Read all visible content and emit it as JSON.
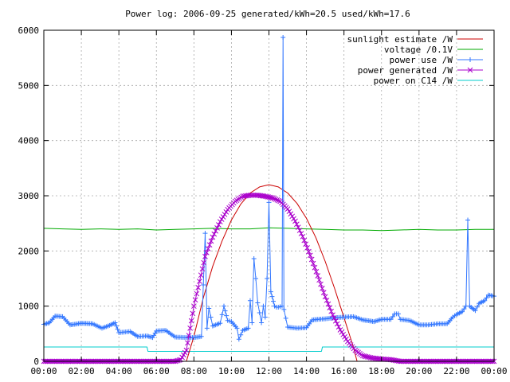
{
  "chart_data": {
    "type": "line",
    "title": "Power log: 2006-09-25 generated/kWh=20.5 used/kWh=17.6",
    "xlabel": "",
    "ylabel": "",
    "xlim": [
      0,
      24
    ],
    "ylim": [
      0,
      6000
    ],
    "x_ticks": [
      "00:00",
      "02:00",
      "04:00",
      "06:00",
      "08:00",
      "10:00",
      "12:00",
      "14:00",
      "16:00",
      "18:00",
      "20:00",
      "22:00",
      "00:00"
    ],
    "y_ticks": [
      0,
      1000,
      2000,
      3000,
      4000,
      5000,
      6000
    ],
    "grid": true,
    "legend_position": "top-right",
    "series": [
      {
        "name": "sunlight estimate /W",
        "style": "line",
        "color": "#cc0000",
        "points": [
          [
            0,
            0
          ],
          [
            7.3,
            0
          ],
          [
            7.6,
            0
          ],
          [
            8,
            450
          ],
          [
            8.5,
            1150
          ],
          [
            9,
            1720
          ],
          [
            9.5,
            2180
          ],
          [
            10,
            2560
          ],
          [
            10.5,
            2850
          ],
          [
            11,
            3050
          ],
          [
            11.5,
            3160
          ],
          [
            12,
            3200
          ],
          [
            12.5,
            3160
          ],
          [
            13,
            3050
          ],
          [
            13.5,
            2860
          ],
          [
            14,
            2590
          ],
          [
            14.5,
            2240
          ],
          [
            15,
            1810
          ],
          [
            15.5,
            1320
          ],
          [
            16,
            790
          ],
          [
            16.5,
            260
          ],
          [
            16.7,
            0
          ],
          [
            24,
            0
          ]
        ]
      },
      {
        "name": "voltage /0.1V",
        "style": "line",
        "color": "#00aa00",
        "points": [
          [
            0,
            2410
          ],
          [
            1,
            2400
          ],
          [
            2,
            2390
          ],
          [
            3,
            2400
          ],
          [
            4,
            2390
          ],
          [
            5,
            2400
          ],
          [
            6,
            2380
          ],
          [
            7,
            2390
          ],
          [
            8,
            2400
          ],
          [
            9,
            2410
          ],
          [
            10,
            2400
          ],
          [
            11,
            2400
          ],
          [
            12,
            2420
          ],
          [
            13,
            2410
          ],
          [
            14,
            2400
          ],
          [
            15,
            2390
          ],
          [
            16,
            2380
          ],
          [
            17,
            2380
          ],
          [
            18,
            2370
          ],
          [
            19,
            2380
          ],
          [
            20,
            2390
          ],
          [
            21,
            2380
          ],
          [
            22,
            2380
          ],
          [
            23,
            2390
          ],
          [
            24,
            2390
          ]
        ]
      },
      {
        "name": "power use /W",
        "style": "linespoints-plus",
        "color": "#3377ff",
        "points": [
          [
            0,
            670
          ],
          [
            0.3,
            700
          ],
          [
            0.6,
            820
          ],
          [
            1,
            810
          ],
          [
            1.4,
            660
          ],
          [
            2,
            690
          ],
          [
            2.6,
            680
          ],
          [
            3.1,
            600
          ],
          [
            3.5,
            650
          ],
          [
            3.8,
            700
          ],
          [
            4,
            520
          ],
          [
            4.6,
            540
          ],
          [
            5,
            450
          ],
          [
            5.5,
            460
          ],
          [
            5.8,
            430
          ],
          [
            6,
            550
          ],
          [
            6.5,
            560
          ],
          [
            7,
            440
          ],
          [
            7.6,
            430
          ],
          [
            8,
            430
          ],
          [
            8.4,
            450
          ],
          [
            8.6,
            2320
          ],
          [
            8.7,
            600
          ],
          [
            8.8,
            960
          ],
          [
            9,
            640
          ],
          [
            9.4,
            690
          ],
          [
            9.6,
            1000
          ],
          [
            9.8,
            740
          ],
          [
            10,
            720
          ],
          [
            10.3,
            600
          ],
          [
            10.4,
            400
          ],
          [
            10.6,
            560
          ],
          [
            10.9,
            600
          ],
          [
            11,
            1100
          ],
          [
            11.1,
            700
          ],
          [
            11.2,
            1860
          ],
          [
            11.3,
            1500
          ],
          [
            11.4,
            1060
          ],
          [
            11.6,
            700
          ],
          [
            11.7,
            1000
          ],
          [
            11.8,
            800
          ],
          [
            11.9,
            1500
          ],
          [
            12,
            2880
          ],
          [
            12.1,
            1260
          ],
          [
            12.3,
            1000
          ],
          [
            12.4,
            980
          ],
          [
            12.5,
            980
          ],
          [
            12.7,
            1000
          ],
          [
            12.75,
            5870
          ],
          [
            12.8,
            940
          ],
          [
            13,
            620
          ],
          [
            13.5,
            600
          ],
          [
            14,
            610
          ],
          [
            14.3,
            750
          ],
          [
            14.6,
            760
          ],
          [
            15,
            770
          ],
          [
            15.5,
            790
          ],
          [
            16,
            800
          ],
          [
            16.5,
            810
          ],
          [
            17,
            750
          ],
          [
            17.6,
            720
          ],
          [
            18,
            760
          ],
          [
            18.5,
            760
          ],
          [
            18.7,
            860
          ],
          [
            18.9,
            860
          ],
          [
            19,
            760
          ],
          [
            19.5,
            740
          ],
          [
            20,
            660
          ],
          [
            20.5,
            660
          ],
          [
            21,
            680
          ],
          [
            21.5,
            680
          ],
          [
            21.8,
            800
          ],
          [
            22,
            850
          ],
          [
            22.3,
            900
          ],
          [
            22.5,
            1000
          ],
          [
            22.6,
            2560
          ],
          [
            22.7,
            1000
          ],
          [
            23,
            920
          ],
          [
            23.2,
            1050
          ],
          [
            23.5,
            1100
          ],
          [
            23.7,
            1200
          ],
          [
            24,
            1180
          ]
        ]
      },
      {
        "name": "power generated /W",
        "style": "linespoints-x",
        "color": "#aa00cc",
        "points": [
          [
            0,
            0
          ],
          [
            1,
            0
          ],
          [
            2,
            0
          ],
          [
            3,
            0
          ],
          [
            4,
            0
          ],
          [
            5,
            0
          ],
          [
            6,
            0
          ],
          [
            7,
            0
          ],
          [
            7.3,
            30
          ],
          [
            7.6,
            200
          ],
          [
            7.8,
            600
          ],
          [
            8,
            1000
          ],
          [
            8.3,
            1450
          ],
          [
            8.6,
            1900
          ],
          [
            9,
            2250
          ],
          [
            9.4,
            2530
          ],
          [
            9.8,
            2750
          ],
          [
            10.2,
            2900
          ],
          [
            10.6,
            2990
          ],
          [
            11,
            3010
          ],
          [
            11.4,
            3010
          ],
          [
            11.8,
            2990
          ],
          [
            12.2,
            2960
          ],
          [
            12.6,
            2900
          ],
          [
            13,
            2760
          ],
          [
            13.4,
            2540
          ],
          [
            13.8,
            2260
          ],
          [
            14.2,
            1920
          ],
          [
            14.6,
            1550
          ],
          [
            15,
            1170
          ],
          [
            15.4,
            840
          ],
          [
            15.8,
            570
          ],
          [
            16.2,
            360
          ],
          [
            16.6,
            200
          ],
          [
            17,
            100
          ],
          [
            17.5,
            60
          ],
          [
            18,
            40
          ],
          [
            18.5,
            30
          ],
          [
            19,
            0
          ],
          [
            20,
            0
          ],
          [
            21,
            0
          ],
          [
            22,
            0
          ],
          [
            23,
            0
          ],
          [
            24,
            0
          ]
        ]
      },
      {
        "name": "power on C14 /W",
        "style": "line",
        "color": "#00cccc",
        "points": [
          [
            0,
            260
          ],
          [
            5.5,
            260
          ],
          [
            5.55,
            180
          ],
          [
            14.8,
            180
          ],
          [
            14.85,
            260
          ],
          [
            24,
            260
          ]
        ]
      }
    ]
  }
}
